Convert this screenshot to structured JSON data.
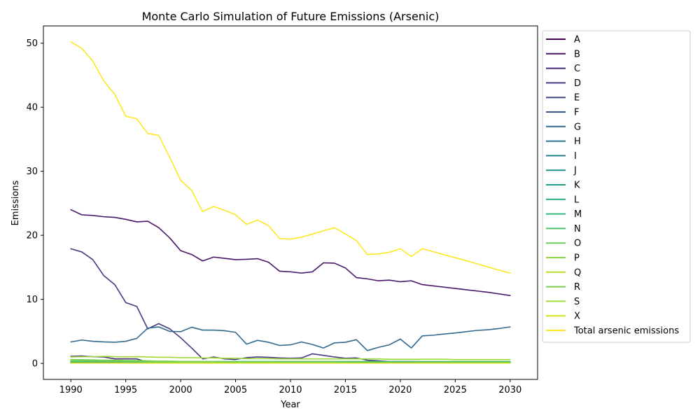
{
  "chart_data": {
    "type": "line",
    "title": "Monte Carlo Simulation of Future Emissions (Arsenic)",
    "xlabel": "Year",
    "ylabel": "Emissions",
    "xlim": [
      1987.5,
      2032.5
    ],
    "ylim": [
      -2.5,
      52.7
    ],
    "xticks": [
      1990,
      1995,
      2000,
      2005,
      2010,
      2015,
      2020,
      2025,
      2030
    ],
    "yticks": [
      0,
      10,
      20,
      30,
      40,
      50
    ],
    "grid": false,
    "legend_position": "outside right",
    "x": [
      1990,
      1991,
      1992,
      1993,
      1994,
      1995,
      1996,
      1997,
      1998,
      1999,
      2000,
      2001,
      2002,
      2003,
      2004,
      2005,
      2006,
      2007,
      2008,
      2009,
      2010,
      2011,
      2012,
      2013,
      2014,
      2015,
      2016,
      2017,
      2018,
      2019,
      2020,
      2021,
      2022,
      2023,
      2024,
      2025,
      2026,
      2027,
      2028,
      2029,
      2030
    ],
    "series": [
      {
        "name": "A",
        "color": "#440154",
        "values": [
          0.05,
          0.05,
          0.05,
          0.05,
          0.05,
          0.05,
          0.05,
          0.05,
          0.05,
          0.05,
          0.05,
          0.05,
          0.05,
          0.05,
          0.05,
          0.05,
          0.05,
          0.05,
          0.05,
          0.05,
          0.05,
          0.05,
          0.05,
          0.05,
          0.05,
          0.05,
          0.05,
          0.05,
          0.05,
          0.05,
          0.05,
          0.05,
          0.05,
          0.05,
          0.05,
          0.05,
          0.05,
          0.05,
          0.05,
          0.05,
          0.05
        ]
      },
      {
        "name": "B",
        "color": "#481668",
        "values": [
          24.0,
          23.2,
          23.1,
          22.9,
          22.8,
          22.5,
          22.1,
          22.2,
          21.2,
          19.6,
          17.6,
          17.0,
          16.0,
          16.6,
          16.4,
          16.2,
          16.25,
          16.35,
          15.8,
          14.4,
          14.3,
          14.1,
          14.3,
          15.7,
          15.65,
          14.9,
          13.4,
          13.2,
          12.9,
          13.0,
          12.75,
          12.9,
          12.3,
          12.1,
          11.9,
          11.7,
          11.5,
          11.3,
          11.1,
          10.85,
          10.6
        ]
      },
      {
        "name": "C",
        "color": "#482878",
        "values": [
          1.1,
          1.15,
          1.05,
          1.0,
          0.7,
          0.7,
          0.7,
          0.2,
          0.2,
          0.2,
          0.2,
          0.2,
          0.2,
          0.2,
          0.2,
          0.2,
          0.2,
          0.2,
          0.2,
          0.2,
          0.2,
          0.2,
          0.2,
          0.2,
          0.2,
          0.2,
          0.2,
          0.2,
          0.2,
          0.2,
          0.2,
          0.2,
          0.15,
          0.15,
          0.15,
          0.15,
          0.15,
          0.15,
          0.15,
          0.15,
          0.15
        ]
      },
      {
        "name": "D",
        "color": "#443983",
        "values": [
          17.9,
          17.4,
          16.2,
          13.7,
          12.3,
          9.5,
          8.9,
          5.4,
          6.2,
          5.4,
          4.0,
          2.4,
          0.7,
          1.0,
          0.7,
          0.6,
          0.9,
          1.0,
          0.95,
          0.85,
          0.8,
          0.85,
          1.5,
          1.25,
          1.0,
          0.8,
          0.85,
          0.5,
          0.4,
          0.3,
          0.3,
          0.3,
          0.25,
          0.25,
          0.25,
          0.25,
          0.25,
          0.25,
          0.25,
          0.25,
          0.25
        ]
      },
      {
        "name": "E",
        "color": "#3e4989",
        "values": [
          0.1,
          0.1,
          0.1,
          0.1,
          0.1,
          0.1,
          0.1,
          0.1,
          0.1,
          0.1,
          0.1,
          0.1,
          0.1,
          0.1,
          0.1,
          0.1,
          0.1,
          0.1,
          0.1,
          0.1,
          0.1,
          0.1,
          0.1,
          0.1,
          0.1,
          0.1,
          0.1,
          0.1,
          0.1,
          0.1,
          0.1,
          0.1,
          0.1,
          0.1,
          0.1,
          0.1,
          0.1,
          0.1,
          0.1,
          0.1,
          0.1
        ]
      },
      {
        "name": "F",
        "color": "#375a8c",
        "values": [
          0.15,
          0.15,
          0.15,
          0.15,
          0.15,
          0.15,
          0.15,
          0.15,
          0.15,
          0.15,
          0.15,
          0.15,
          0.15,
          0.15,
          0.15,
          0.15,
          0.15,
          0.15,
          0.15,
          0.15,
          0.15,
          0.15,
          0.15,
          0.15,
          0.15,
          0.15,
          0.15,
          0.15,
          0.15,
          0.15,
          0.15,
          0.15,
          0.15,
          0.15,
          0.15,
          0.15,
          0.15,
          0.15,
          0.15,
          0.15,
          0.15
        ]
      },
      {
        "name": "G",
        "color": "#31688e",
        "values": [
          3.35,
          3.65,
          3.45,
          3.35,
          3.3,
          3.45,
          3.9,
          5.5,
          5.7,
          5.0,
          4.95,
          5.65,
          5.2,
          5.2,
          5.1,
          4.85,
          3.0,
          3.6,
          3.3,
          2.8,
          2.9,
          3.35,
          2.95,
          2.4,
          3.2,
          3.3,
          3.7,
          2.0,
          2.5,
          2.9,
          3.8,
          2.4,
          4.3,
          4.4,
          4.6,
          4.75,
          4.95,
          5.15,
          5.25,
          5.45,
          5.7
        ]
      },
      {
        "name": "H",
        "color": "#2c728e",
        "values": [
          0.2,
          0.2,
          0.2,
          0.2,
          0.2,
          0.2,
          0.2,
          0.2,
          0.2,
          0.2,
          0.2,
          0.2,
          0.2,
          0.2,
          0.2,
          0.2,
          0.2,
          0.2,
          0.2,
          0.2,
          0.2,
          0.2,
          0.2,
          0.2,
          0.2,
          0.2,
          0.2,
          0.2,
          0.2,
          0.2,
          0.2,
          0.2,
          0.2,
          0.2,
          0.2,
          0.2,
          0.2,
          0.2,
          0.2,
          0.2,
          0.2
        ]
      },
      {
        "name": "I",
        "color": "#26828e",
        "values": [
          0.1,
          0.1,
          0.1,
          0.1,
          0.1,
          0.1,
          0.1,
          0.1,
          0.1,
          0.1,
          0.1,
          0.1,
          0.1,
          0.1,
          0.1,
          0.1,
          0.1,
          0.1,
          0.1,
          0.1,
          0.1,
          0.1,
          0.1,
          0.1,
          0.1,
          0.1,
          0.1,
          0.1,
          0.1,
          0.1,
          0.1,
          0.1,
          0.1,
          0.1,
          0.1,
          0.1,
          0.1,
          0.1,
          0.1,
          0.1,
          0.1
        ]
      },
      {
        "name": "J",
        "color": "#21918c",
        "values": [
          0.6,
          0.55,
          0.5,
          0.4,
          0.35,
          0.3,
          0.3,
          0.25,
          0.2,
          0.2,
          0.15,
          0.15,
          0.1,
          0.1,
          0.1,
          0.1,
          0.1,
          0.1,
          0.1,
          0.1,
          0.1,
          0.1,
          0.1,
          0.1,
          0.1,
          0.1,
          0.1,
          0.1,
          0.1,
          0.1,
          0.1,
          0.1,
          0.1,
          0.1,
          0.1,
          0.1,
          0.1,
          0.1,
          0.1,
          0.1,
          0.1
        ]
      },
      {
        "name": "K",
        "color": "#1f9e89",
        "values": [
          0.05,
          0.05,
          0.05,
          0.05,
          0.05,
          0.05,
          0.05,
          0.05,
          0.05,
          0.05,
          0.05,
          0.05,
          0.05,
          0.05,
          0.05,
          0.05,
          0.05,
          0.05,
          0.05,
          0.05,
          0.05,
          0.05,
          0.05,
          0.05,
          0.05,
          0.05,
          0.05,
          0.05,
          0.05,
          0.05,
          0.05,
          0.05,
          0.05,
          0.05,
          0.05,
          0.05,
          0.05,
          0.05,
          0.05,
          0.05,
          0.05
        ]
      },
      {
        "name": "L",
        "color": "#25ab82",
        "values": [
          0.1,
          0.1,
          0.1,
          0.1,
          0.1,
          0.1,
          0.1,
          0.1,
          0.1,
          0.1,
          0.1,
          0.1,
          0.1,
          0.1,
          0.1,
          0.1,
          0.1,
          0.1,
          0.1,
          0.1,
          0.1,
          0.1,
          0.1,
          0.1,
          0.1,
          0.1,
          0.1,
          0.1,
          0.1,
          0.1,
          0.1,
          0.1,
          0.1,
          0.1,
          0.1,
          0.1,
          0.1,
          0.1,
          0.1,
          0.1,
          0.1
        ]
      },
      {
        "name": "M",
        "color": "#35b779",
        "values": [
          0.05,
          0.05,
          0.05,
          0.05,
          0.05,
          0.05,
          0.05,
          0.05,
          0.05,
          0.05,
          0.05,
          0.05,
          0.05,
          0.05,
          0.05,
          0.05,
          0.05,
          0.05,
          0.05,
          0.05,
          0.05,
          0.05,
          0.05,
          0.05,
          0.05,
          0.05,
          0.05,
          0.05,
          0.05,
          0.05,
          0.05,
          0.05,
          0.05,
          0.05,
          0.05,
          0.05,
          0.05,
          0.05,
          0.05,
          0.05,
          0.05
        ]
      },
      {
        "name": "N",
        "color": "#4ec36b",
        "values": [
          0.3,
          0.3,
          0.3,
          0.3,
          0.3,
          0.3,
          0.3,
          0.3,
          0.3,
          0.3,
          0.3,
          0.3,
          0.3,
          0.3,
          0.3,
          0.3,
          0.3,
          0.3,
          0.3,
          0.3,
          0.3,
          0.3,
          0.3,
          0.3,
          0.3,
          0.3,
          0.3,
          0.3,
          0.3,
          0.3,
          0.3,
          0.3,
          0.3,
          0.3,
          0.3,
          0.3,
          0.3,
          0.3,
          0.3,
          0.3,
          0.3
        ]
      },
      {
        "name": "O",
        "color": "#6ccd5a",
        "values": [
          0.4,
          0.4,
          0.35,
          0.35,
          0.3,
          0.3,
          0.3,
          0.25,
          0.25,
          0.2,
          0.2,
          0.2,
          0.2,
          0.15,
          0.15,
          0.15,
          0.15,
          0.15,
          0.15,
          0.1,
          0.1,
          0.1,
          0.1,
          0.1,
          0.1,
          0.1,
          0.1,
          0.1,
          0.1,
          0.1,
          0.1,
          0.1,
          0.1,
          0.1,
          0.1,
          0.1,
          0.1,
          0.1,
          0.1,
          0.1,
          0.1
        ]
      },
      {
        "name": "P",
        "color": "#8fd744",
        "values": [
          0.05,
          0.05,
          0.05,
          0.05,
          0.05,
          0.05,
          0.05,
          0.05,
          0.05,
          0.05,
          0.05,
          0.05,
          0.05,
          0.05,
          0.05,
          0.05,
          0.05,
          0.05,
          0.05,
          0.05,
          0.05,
          0.05,
          0.05,
          0.05,
          0.05,
          0.05,
          0.05,
          0.05,
          0.05,
          0.05,
          0.05,
          0.05,
          0.05,
          0.05,
          0.05,
          0.05,
          0.05,
          0.05,
          0.05,
          0.05,
          0.05
        ]
      },
      {
        "name": "Q",
        "color": "#b5de2b",
        "values": [
          0.05,
          0.05,
          0.05,
          0.05,
          0.05,
          0.05,
          0.05,
          0.05,
          0.05,
          0.05,
          0.05,
          0.05,
          0.05,
          0.05,
          0.05,
          0.05,
          0.05,
          0.05,
          0.05,
          0.05,
          0.05,
          0.05,
          0.05,
          0.05,
          0.05,
          0.05,
          0.05,
          0.05,
          0.05,
          0.05,
          0.05,
          0.05,
          0.05,
          0.05,
          0.05,
          0.05,
          0.05,
          0.05,
          0.05,
          0.05,
          0.05
        ]
      },
      {
        "name": "R",
        "color": "#7ad151",
        "values": [
          0.6,
          0.55,
          0.55,
          0.5,
          0.5,
          0.45,
          0.45,
          0.4,
          0.35,
          0.35,
          0.3,
          0.3,
          0.25,
          0.25,
          0.2,
          0.2,
          0.2,
          0.2,
          0.2,
          0.15,
          0.15,
          0.15,
          0.15,
          0.15,
          0.15,
          0.1,
          0.1,
          0.1,
          0.1,
          0.1,
          0.1,
          0.1,
          0.1,
          0.1,
          0.1,
          0.1,
          0.1,
          0.1,
          0.1,
          0.1,
          0.1
        ]
      },
      {
        "name": "S",
        "color": "#a0da39",
        "values": [
          1.0,
          1.05,
          1.05,
          1.1,
          1.05,
          1.0,
          1.05,
          1.0,
          0.95,
          0.95,
          0.9,
          0.9,
          0.85,
          0.85,
          0.8,
          0.8,
          0.75,
          0.75,
          0.75,
          0.7,
          0.7,
          0.7,
          0.7,
          0.7,
          0.7,
          0.7,
          0.7,
          0.7,
          0.7,
          0.65,
          0.65,
          0.65,
          0.65,
          0.65,
          0.65,
          0.6,
          0.6,
          0.6,
          0.6,
          0.6,
          0.6
        ]
      },
      {
        "name": "X",
        "color": "#d0e11c",
        "values": [
          0.05,
          0.05,
          0.05,
          0.05,
          0.05,
          0.05,
          0.05,
          0.05,
          0.05,
          0.05,
          0.05,
          0.05,
          0.05,
          0.05,
          0.05,
          0.05,
          0.05,
          0.05,
          0.05,
          0.05,
          0.05,
          0.05,
          0.05,
          0.05,
          0.05,
          0.05,
          0.05,
          0.05,
          0.05,
          0.05,
          0.05,
          0.05,
          0.05,
          0.05,
          0.05,
          0.05,
          0.05,
          0.05,
          0.05,
          0.05,
          0.05
        ]
      },
      {
        "name": "Total arsenic emissions",
        "color": "#fde725",
        "values": [
          50.2,
          49.2,
          47.2,
          44.1,
          42.0,
          38.6,
          38.2,
          35.9,
          35.6,
          32.2,
          28.6,
          27.0,
          23.7,
          24.5,
          23.9,
          23.2,
          21.7,
          22.4,
          21.5,
          19.5,
          19.4,
          19.7,
          20.2,
          20.7,
          21.2,
          20.2,
          19.2,
          17.0,
          17.1,
          17.35,
          17.9,
          16.7,
          17.9,
          17.45,
          16.95,
          16.5,
          16.05,
          15.55,
          15.05,
          14.55,
          14.1
        ]
      }
    ]
  }
}
